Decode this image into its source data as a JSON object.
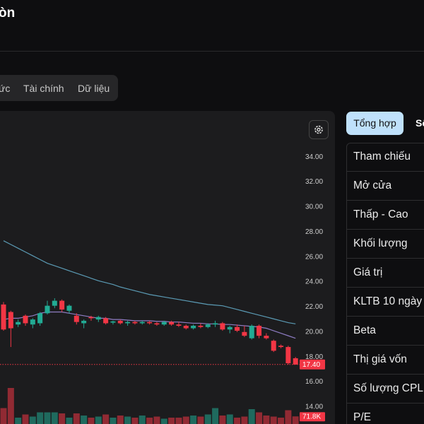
{
  "header": {
    "title": "òn"
  },
  "tabs": [
    "ức",
    "Tài chính",
    "Dữ liệu"
  ],
  "side_tabs": [
    "Tổng hợp",
    "Số"
  ],
  "summary": {
    "rows": [
      "Tham chiếu",
      "Mở cửa",
      "Thấp - Cao",
      "Khối lượng",
      "Giá trị",
      "KLTB 10 ngày",
      "Beta",
      "Thị giá vốn",
      "Số lượng CPLH",
      "P/E"
    ]
  },
  "chart": {
    "type": "candlestick",
    "up_color": "#22ab94",
    "down_color": "#f23645",
    "ylim": [
      12.64,
      36.95
    ],
    "yticks": [
      {
        "value": 34,
        "label": "34.00"
      },
      {
        "value": 32,
        "label": "32.00"
      },
      {
        "value": 30,
        "label": "30.00"
      },
      {
        "value": 28,
        "label": "28.00"
      },
      {
        "value": 26,
        "label": "26.00"
      },
      {
        "value": 24,
        "label": "24.00"
      },
      {
        "value": 22,
        "label": "22.00"
      },
      {
        "value": 20,
        "label": "20.00"
      },
      {
        "value": 18,
        "label": "18.00"
      },
      {
        "value": 16,
        "label": "16.00"
      },
      {
        "value": 14,
        "label": "14.00"
      }
    ],
    "candles": {
      "open": [
        22.2,
        21.6,
        20.6,
        21.3,
        20.6,
        20.7,
        21.5,
        22.1,
        22.5,
        21.7,
        21.3,
        20.7,
        21.2,
        21.0,
        21.1,
        20.75,
        20.9,
        20.7,
        20.8,
        20.7,
        20.8,
        20.7,
        20.6,
        20.8,
        20.6,
        20.5,
        20.3,
        20.5,
        20.4,
        20.6,
        20.7,
        20.2,
        20.4,
        20.0,
        19.5,
        20.5,
        19.7,
        19.3,
        18.9,
        18.8,
        17.9
      ],
      "high": [
        22.4,
        21.7,
        21.0,
        21.4,
        21.1,
        21.6,
        22.5,
        22.7,
        22.6,
        22.2,
        21.5,
        21.0,
        21.3,
        21.3,
        21.2,
        20.9,
        21.0,
        20.9,
        20.9,
        20.9,
        20.9,
        20.8,
        20.9,
        20.9,
        20.8,
        20.6,
        20.6,
        20.7,
        20.7,
        20.9,
        20.8,
        20.5,
        20.6,
        20.5,
        20.6,
        20.6,
        19.9,
        19.4,
        19.0,
        18.9,
        18.0
      ],
      "low": [
        20.1,
        18.8,
        20.4,
        20.5,
        20.3,
        20.5,
        21.4,
        21.9,
        21.6,
        21.5,
        20.6,
        20.3,
        20.9,
        20.8,
        20.6,
        20.6,
        20.6,
        20.5,
        20.6,
        20.6,
        20.6,
        20.5,
        20.5,
        20.5,
        20.4,
        20.2,
        20.2,
        20.3,
        20.3,
        20.4,
        20.1,
        19.9,
        20.0,
        19.6,
        19.4,
        19.5,
        19.4,
        18.4,
        18.7,
        17.4,
        17.4
      ],
      "close": [
        20.2,
        20.3,
        20.8,
        20.7,
        21.0,
        21.5,
        22.1,
        22.5,
        21.8,
        22.1,
        20.8,
        20.9,
        21.1,
        21.2,
        20.7,
        20.85,
        20.7,
        20.8,
        20.7,
        20.8,
        20.7,
        20.6,
        20.8,
        20.6,
        20.5,
        20.3,
        20.5,
        20.4,
        20.6,
        20.7,
        20.2,
        20.4,
        20.1,
        19.7,
        20.5,
        19.7,
        19.5,
        18.5,
        18.8,
        17.5,
        17.4
      ]
    },
    "ma": [
      {
        "color": "#8e7cc3",
        "values": [
          21.0,
          21.1,
          21.1,
          21.2,
          21.3,
          21.5,
          21.6,
          21.6,
          21.6,
          21.5,
          21.4,
          21.3,
          21.2,
          21.1,
          21.1,
          21.0,
          21.0,
          20.95,
          20.9,
          20.9,
          20.9,
          20.85,
          20.85,
          20.8,
          20.8,
          20.75,
          20.7,
          20.7,
          20.65,
          20.65,
          20.6,
          20.6,
          20.55,
          20.5,
          20.45,
          20.4,
          20.3,
          20.1,
          19.9,
          19.7,
          19.5
        ]
      },
      {
        "color": "#5b9bb5",
        "values": [
          27.3,
          27.0,
          26.7,
          26.4,
          26.1,
          25.8,
          25.5,
          25.3,
          25.1,
          24.9,
          24.7,
          24.5,
          24.3,
          24.1,
          23.95,
          23.8,
          23.6,
          23.45,
          23.3,
          23.15,
          23.0,
          22.9,
          22.8,
          22.7,
          22.6,
          22.5,
          22.4,
          22.3,
          22.2,
          22.15,
          22.1,
          21.95,
          21.8,
          21.65,
          21.5,
          21.35,
          21.2,
          21.05,
          20.9,
          20.75,
          20.65
        ]
      }
    ],
    "volume": [
      150000,
      340000,
      60000,
      90000,
      70000,
      110000,
      110000,
      110000,
      100000,
      60000,
      100000,
      80000,
      60000,
      70000,
      90000,
      60000,
      80000,
      70000,
      60000,
      80000,
      60000,
      70000,
      50000,
      60000,
      60000,
      70000,
      80000,
      70000,
      90000,
      150000,
      80000,
      90000,
      60000,
      70000,
      140000,
      110000,
      80000,
      70000,
      60000,
      130000,
      71800
    ],
    "vlim": [
      0,
      400000
    ],
    "last_price": {
      "value": 17.4,
      "label": "17.40"
    },
    "last_volume": {
      "value": 71800,
      "label": "71.8K"
    }
  }
}
